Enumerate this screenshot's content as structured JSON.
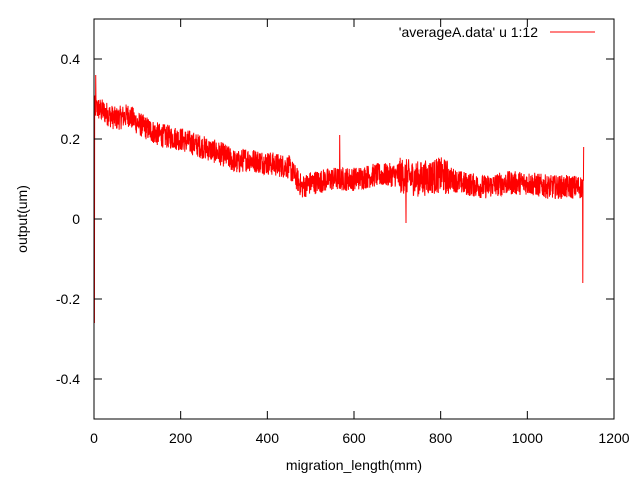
{
  "chart_data": {
    "type": "line",
    "title": "",
    "xlabel": "migration_length(mm)",
    "ylabel": "output(um)",
    "xlim": [
      0,
      1200
    ],
    "ylim": [
      -0.5,
      0.5
    ],
    "x_ticks": [
      0,
      200,
      400,
      600,
      800,
      1000,
      1200
    ],
    "y_ticks": [
      -0.4,
      -0.2,
      0,
      0.2,
      0.4
    ],
    "x_tick_labels": [
      "0",
      "200",
      "400",
      "600",
      "800",
      "1000",
      "1200"
    ],
    "y_tick_labels": [
      "-0.4",
      "-0.2",
      "0",
      "0.2",
      "0.4"
    ],
    "grid": false,
    "legend_position": "top-right",
    "series": [
      {
        "name": "'averageA.data' u 1:12",
        "color": "#ff0000",
        "x": [
          0,
          20,
          50,
          80,
          100,
          150,
          200,
          250,
          300,
          330,
          350,
          400,
          450,
          480,
          500,
          550,
          600,
          650,
          700,
          750,
          800,
          850,
          900,
          950,
          1000,
          1050,
          1100,
          1130
        ],
        "y": [
          0.28,
          0.27,
          0.25,
          0.26,
          0.24,
          0.21,
          0.2,
          0.18,
          0.16,
          0.14,
          0.15,
          0.14,
          0.13,
          0.08,
          0.09,
          0.1,
          0.1,
          0.11,
          0.11,
          0.1,
          0.11,
          0.09,
          0.08,
          0.09,
          0.09,
          0.08,
          0.08,
          0.08
        ],
        "spikes": [
          {
            "x": 1,
            "y": -0.26
          },
          {
            "x": 4,
            "y": 0.36
          },
          {
            "x": 567,
            "y": 0.21
          },
          {
            "x": 720,
            "y": -0.01
          },
          {
            "x": 1128,
            "y": -0.16
          },
          {
            "x": 1130,
            "y": 0.18
          }
        ],
        "noise_amplitude": 0.03
      }
    ]
  }
}
